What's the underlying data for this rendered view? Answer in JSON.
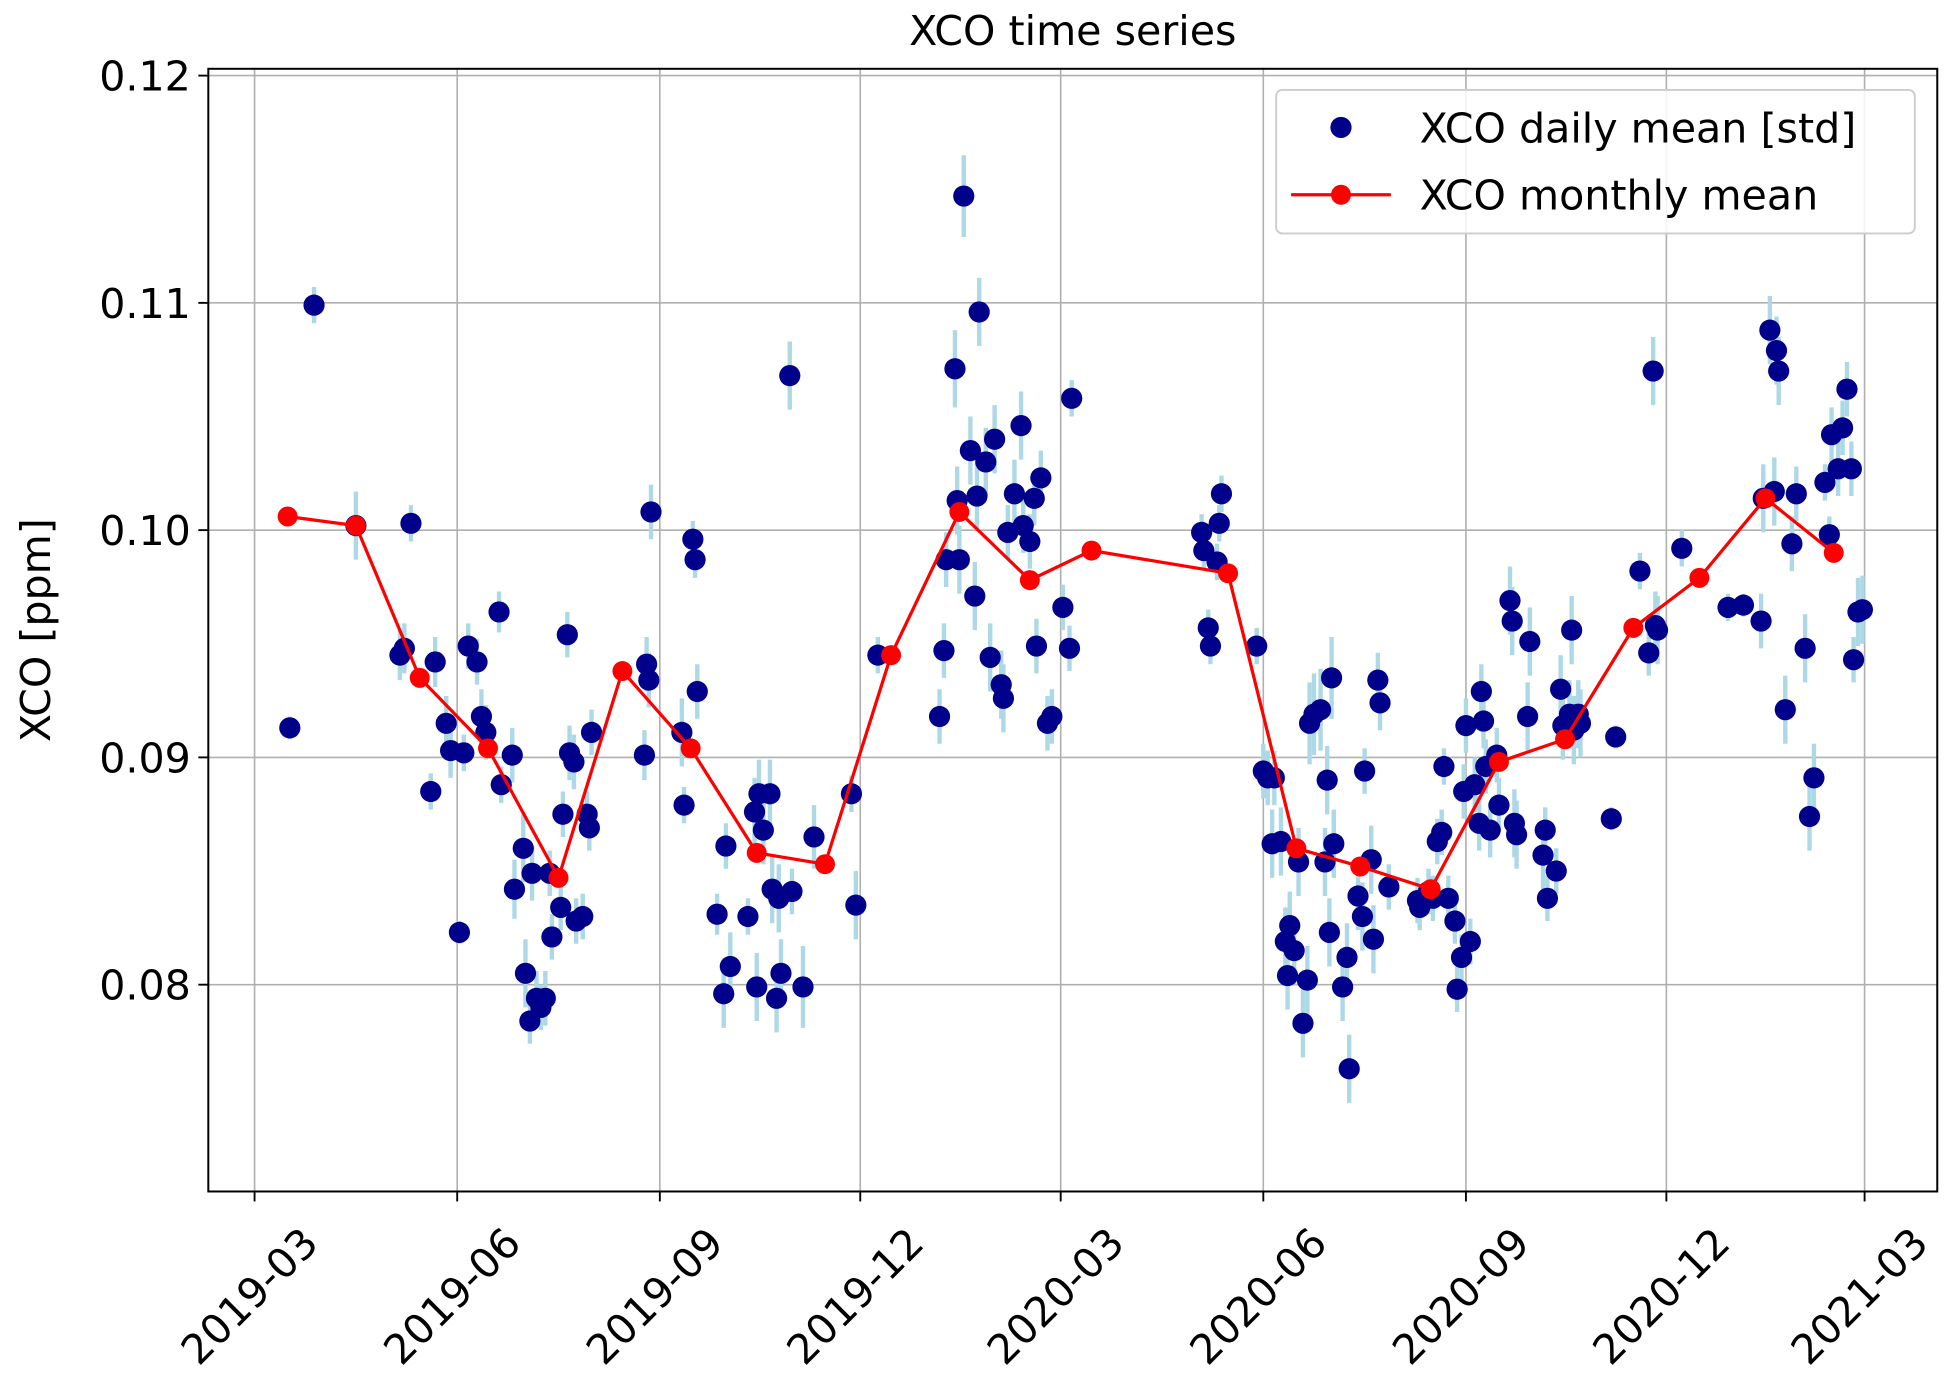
{
  "chart_data": {
    "type": "scatter",
    "title": "XCO time series",
    "ylabel": "XCO [ppm]",
    "xlim": [
      "2019-02-08",
      "2021-04-03"
    ],
    "xticks": [
      "2019-03",
      "2019-06",
      "2019-09",
      "2019-12",
      "2020-03",
      "2020-06",
      "2020-09",
      "2020-12",
      "2021-03"
    ],
    "ylim": [
      0.0709,
      0.1203
    ],
    "yticks": [
      0.08,
      0.09,
      {
        "value": 0.1,
        "label": "0.10"
      },
      0.11,
      0.12
    ],
    "grid": true,
    "legend": "upper right",
    "series": [
      {
        "name": "XCO daily mean [std]",
        "type": "scatter",
        "color": "#00008b",
        "error_color": "#add8e6",
        "x": [
          "2019-03-17",
          "2019-03-28",
          "2019-04-16",
          "2019-05-06",
          "2019-05-08",
          "2019-05-11",
          "2019-05-20",
          "2019-05-22",
          "2019-05-27",
          "2019-05-29",
          "2019-06-02",
          "2019-06-04",
          "2019-06-06",
          "2019-06-10",
          "2019-06-12",
          "2019-06-14",
          "2019-06-20",
          "2019-06-21",
          "2019-06-26",
          "2019-06-27",
          "2019-07-01",
          "2019-07-02",
          "2019-07-04",
          "2019-07-05",
          "2019-07-07",
          "2019-07-09",
          "2019-07-11",
          "2019-07-13",
          "2019-07-14",
          "2019-07-18",
          "2019-07-19",
          "2019-07-21",
          "2019-07-22",
          "2019-07-24",
          "2019-07-25",
          "2019-07-28",
          "2019-07-30",
          "2019-07-31",
          "2019-08-01",
          "2019-08-25",
          "2019-08-26",
          "2019-08-27",
          "2019-08-28",
          "2019-09-11",
          "2019-09-12",
          "2019-09-16",
          "2019-09-17",
          "2019-09-18",
          "2019-09-27",
          "2019-10-01",
          "2019-09-30",
          "2019-10-03",
          "2019-10-11",
          "2019-10-14",
          "2019-10-15",
          "2019-10-16",
          "2019-10-18",
          "2019-10-21",
          "2019-10-22",
          "2019-10-24",
          "2019-10-25",
          "2019-10-26",
          "2019-10-30",
          "2019-10-31",
          "2019-11-05",
          "2019-11-10",
          "2019-11-27",
          "2019-11-29",
          "2019-12-09",
          "2020-01-06",
          "2020-01-08",
          "2020-01-09",
          "2020-01-13",
          "2020-01-14",
          "2020-01-15",
          "2020-01-17",
          "2020-01-20",
          "2020-01-22",
          "2020-01-23",
          "2020-01-24",
          "2020-01-27",
          "2020-01-29",
          "2020-01-31",
          "2020-02-03",
          "2020-02-04",
          "2020-02-06",
          "2020-02-09",
          "2020-02-12",
          "2020-02-13",
          "2020-02-16",
          "2020-02-18",
          "2020-02-19",
          "2020-02-21",
          "2020-02-24",
          "2020-02-26",
          "2020-03-02",
          "2020-03-05",
          "2020-03-06",
          "2020-05-04",
          "2020-05-05",
          "2020-05-07",
          "2020-05-08",
          "2020-05-11",
          "2020-05-12",
          "2020-05-13",
          "2020-05-29",
          "2020-06-01",
          "2020-06-03",
          "2020-06-05",
          "2020-06-06",
          "2020-06-09",
          "2020-06-11",
          "2020-06-12",
          "2020-06-13",
          "2020-06-15",
          "2020-06-17",
          "2020-06-19",
          "2020-06-21",
          "2020-06-22",
          "2020-06-24",
          "2020-06-27",
          "2020-06-29",
          "2020-06-30",
          "2020-07-01",
          "2020-07-02",
          "2020-07-03",
          "2020-07-07",
          "2020-07-09",
          "2020-07-10",
          "2020-07-14",
          "2020-07-16",
          "2020-07-17",
          "2020-07-20",
          "2020-07-21",
          "2020-07-23",
          "2020-07-24",
          "2020-07-28",
          "2020-08-10",
          "2020-08-11",
          "2020-08-15",
          "2020-08-17",
          "2020-08-19",
          "2020-08-21",
          "2020-08-22",
          "2020-08-24",
          "2020-08-27",
          "2020-08-28",
          "2020-08-30",
          "2020-08-31",
          "2020-09-01",
          "2020-09-03",
          "2020-09-05",
          "2020-09-07",
          "2020-09-08",
          "2020-09-09",
          "2020-09-10",
          "2020-09-12",
          "2020-09-15",
          "2020-09-16",
          "2020-09-21",
          "2020-09-22",
          "2020-09-23",
          "2020-09-24",
          "2020-09-29",
          "2020-09-30",
          "2020-10-06",
          "2020-10-07",
          "2020-10-08",
          "2020-10-12",
          "2020-10-14",
          "2020-10-15",
          "2020-10-18",
          "2020-10-19",
          "2020-10-20",
          "2020-10-22",
          "2020-10-23",
          "2020-11-06",
          "2020-11-08",
          "2020-11-19",
          "2020-11-23",
          "2020-11-25",
          "2020-11-26",
          "2020-11-27",
          "2020-12-08",
          "2020-12-29",
          "2021-01-05",
          "2021-01-13",
          "2021-01-14",
          "2021-01-17",
          "2021-01-19",
          "2021-01-20",
          "2021-01-21",
          "2021-01-24",
          "2021-01-27",
          "2021-01-29",
          "2021-02-02",
          "2021-02-04",
          "2021-02-06",
          "2021-02-11",
          "2021-02-13",
          "2021-02-14",
          "2021-02-17",
          "2021-02-19",
          "2021-02-21",
          "2021-02-23",
          "2021-02-24",
          "2021-02-26",
          "2021-02-28"
        ],
        "values": [
          0.0913,
          0.1099,
          0.1002,
          0.0945,
          0.0948,
          0.1003,
          0.0885,
          0.0942,
          0.0915,
          0.0903,
          0.0823,
          0.0902,
          0.0949,
          0.0942,
          0.0918,
          0.0911,
          0.0964,
          0.0888,
          0.0901,
          0.0842,
          0.086,
          0.0805,
          0.0784,
          0.0849,
          0.0794,
          0.079,
          0.0794,
          0.0849,
          0.0821,
          0.0834,
          0.0875,
          0.0954,
          0.0902,
          0.0898,
          0.0828,
          0.083,
          0.0875,
          0.0869,
          0.0911,
          0.0901,
          0.0941,
          0.0934,
          0.1008,
          0.0911,
          0.0879,
          0.0996,
          0.0987,
          0.0929,
          0.0831,
          0.0861,
          0.0796,
          0.0808,
          0.083,
          0.0876,
          0.0799,
          0.0884,
          0.0868,
          0.0884,
          0.0842,
          0.0794,
          0.0838,
          0.0805,
          0.1068,
          0.0841,
          0.0799,
          0.0865,
          0.0884,
          0.0835,
          0.0945,
          0.0918,
          0.0947,
          0.0987,
          0.1071,
          0.1013,
          0.0987,
          0.1147,
          0.1035,
          0.0971,
          0.1015,
          0.1096,
          0.103,
          0.0944,
          0.104,
          0.0932,
          0.0926,
          0.0999,
          0.1016,
          0.1046,
          0.1002,
          0.0995,
          0.1014,
          0.0949,
          0.1023,
          0.0915,
          0.0918,
          0.0966,
          0.0948,
          0.1058,
          0.0999,
          0.0991,
          0.0957,
          0.0949,
          0.0986,
          0.1003,
          0.1016,
          0.0949,
          0.0894,
          0.0891,
          0.0862,
          0.0891,
          0.0863,
          0.0819,
          0.0804,
          0.0826,
          0.0815,
          0.0854,
          0.0783,
          0.0802,
          0.0915,
          0.0919,
          0.0921,
          0.0854,
          0.089,
          0.0823,
          0.0935,
          0.0862,
          0.0799,
          0.0812,
          0.0763,
          0.0839,
          0.083,
          0.0894,
          0.0855,
          0.082,
          0.0934,
          0.0924,
          0.0843,
          0.0837,
          0.0834,
          0.0841,
          0.0838,
          0.0863,
          0.0867,
          0.0896,
          0.0838,
          0.0828,
          0.0798,
          0.0812,
          0.0885,
          0.0914,
          0.0819,
          0.0888,
          0.0871,
          0.0929,
          0.0916,
          0.0896,
          0.0868,
          0.0901,
          0.0879,
          0.0969,
          0.096,
          0.0871,
          0.0866,
          0.0918,
          0.0951,
          0.0857,
          0.0868,
          0.0838,
          0.085,
          0.093,
          0.0914,
          0.0919,
          0.0956,
          0.0912,
          0.0919,
          0.0915,
          0.0873,
          0.0909,
          0.0982,
          0.0946,
          0.107,
          0.0958,
          0.0956,
          0.0992,
          0.0966,
          0.0967,
          0.096,
          0.1014,
          0.1088,
          0.1017,
          0.1079,
          0.107,
          0.0921,
          0.0994,
          0.1016,
          0.0948,
          0.0874,
          0.0891,
          0.1021,
          0.0998,
          0.1042,
          0.1027,
          0.1045,
          0.1062,
          0.1027,
          0.0943,
          0.0964,
          0.0965
        ],
        "errors": [
          0.0005,
          0.0008,
          0.0015,
          0.0011,
          0.0011,
          0.0008,
          0.0008,
          0.0011,
          0.0012,
          0.0012,
          0.0005,
          0.0008,
          0.001,
          0.001,
          0.0012,
          0.0012,
          0.0009,
          0.0008,
          0.0012,
          0.0013,
          0.0015,
          0.0015,
          0.001,
          0.0012,
          0.0012,
          0.001,
          0.0012,
          0.001,
          0.001,
          0.001,
          0.001,
          0.001,
          0.0012,
          0.0012,
          0.001,
          0.001,
          0.001,
          0.001,
          0.001,
          0.0011,
          0.0012,
          0.0012,
          0.0012,
          0.0015,
          0.0008,
          0.0008,
          0.0008,
          0.0012,
          0.0009,
          0.001,
          0.0015,
          0.0015,
          0.0008,
          0.0015,
          0.0015,
          0.0015,
          0.0015,
          0.0015,
          0.0015,
          0.0015,
          0.0015,
          0.0015,
          0.0015,
          0.001,
          0.0018,
          0.0014,
          0.0008,
          0.0015,
          0.0008,
          0.0012,
          0.0012,
          0.0012,
          0.0017,
          0.0015,
          0.0015,
          0.0018,
          0.0015,
          0.0015,
          0.0015,
          0.0015,
          0.0015,
          0.0015,
          0.0015,
          0.0015,
          0.0015,
          0.0012,
          0.0015,
          0.0015,
          0.0012,
          0.0012,
          0.0012,
          0.0012,
          0.0012,
          0.0012,
          0.0012,
          0.001,
          0.001,
          0.0008,
          0.0008,
          0.0008,
          0.0008,
          0.0008,
          0.0008,
          0.0008,
          0.0008,
          0.0008,
          0.0012,
          0.0012,
          0.0015,
          0.0012,
          0.0015,
          0.0015,
          0.0015,
          0.0015,
          0.0015,
          0.0015,
          0.0015,
          0.0015,
          0.0018,
          0.0018,
          0.0018,
          0.0015,
          0.0015,
          0.0015,
          0.0018,
          0.0015,
          0.0015,
          0.0015,
          0.0015,
          0.0015,
          0.0015,
          0.001,
          0.0015,
          0.0015,
          0.0012,
          0.0012,
          0.001,
          0.001,
          0.001,
          0.001,
          0.001,
          0.001,
          0.001,
          0.0008,
          0.001,
          0.001,
          0.001,
          0.001,
          0.0012,
          0.0012,
          0.001,
          0.0012,
          0.0012,
          0.0012,
          0.0012,
          0.0012,
          0.0012,
          0.0012,
          0.0012,
          0.0015,
          0.0015,
          0.0015,
          0.0015,
          0.0015,
          0.0015,
          0.0015,
          0.001,
          0.001,
          0.001,
          0.0015,
          0.0015,
          0.0015,
          0.0015,
          0.0015,
          0.0015,
          0.0015,
          0.0005,
          0.0005,
          0.0008,
          0.001,
          0.0015,
          0.0015,
          0.0015,
          0.0008,
          0.0006,
          0.0005,
          0.0012,
          0.0015,
          0.0015,
          0.0015,
          0.0015,
          0.0015,
          0.0015,
          0.0012,
          0.0012,
          0.0015,
          0.0015,
          0.0015,
          0.0008,
          0.0008,
          0.0012,
          0.0012,
          0.0012,
          0.0012,
          0.0012,
          0.001,
          0.0015,
          0.0015
        ]
      },
      {
        "name": "XCO monthly mean",
        "type": "line",
        "color": "#ff0000",
        "x": [
          "2019-03-16",
          "2019-04-16",
          "2019-05-15",
          "2019-06-15",
          "2019-07-17",
          "2019-08-15",
          "2019-09-15",
          "2019-10-15",
          "2019-11-15",
          "2019-12-15",
          "2020-01-15",
          "2020-02-16",
          "2020-03-15",
          "2020-05-16",
          "2020-06-16",
          "2020-07-15",
          "2020-08-16",
          "2020-09-16",
          "2020-10-16",
          "2020-11-16",
          "2020-12-16",
          "2021-01-15",
          "2021-02-15"
        ],
        "values": [
          0.1006,
          0.1002,
          0.0935,
          0.0904,
          0.0847,
          0.0938,
          0.0904,
          0.0858,
          0.0853,
          0.0945,
          0.1008,
          0.0978,
          0.0991,
          0.0981,
          0.086,
          0.0852,
          0.0842,
          0.0898,
          0.0908,
          0.0957,
          0.0979,
          0.1014,
          0.099
        ]
      }
    ]
  }
}
